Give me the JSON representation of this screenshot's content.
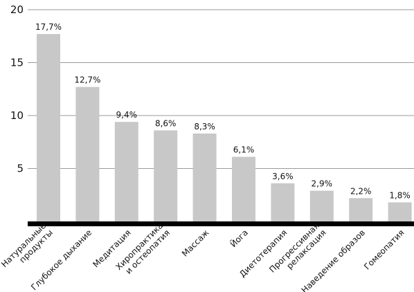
{
  "chart_data": {
    "type": "bar",
    "categories": [
      [
        "Натуральные",
        "продукты"
      ],
      [
        "Глубокое дыхание"
      ],
      [
        "Медитация"
      ],
      [
        "Хиропрактика",
        "и остеопатия"
      ],
      [
        "Массаж"
      ],
      [
        "Йога"
      ],
      [
        "Диетотерапия"
      ],
      [
        "Прогрессивная",
        "релаксация"
      ],
      [
        "Наведение образов"
      ],
      [
        "Гомеопатия"
      ]
    ],
    "values": [
      17.7,
      12.7,
      9.4,
      8.6,
      8.3,
      6.1,
      3.6,
      2.9,
      2.2,
      1.8
    ],
    "value_labels": [
      "17,7%",
      "12,7%",
      "9,4%",
      "8,6%",
      "8,3%",
      "6,1%",
      "3,6%",
      "2,9%",
      "2,2%",
      "1,8%"
    ],
    "title": "",
    "xlabel": "",
    "ylabel": "",
    "ylim": [
      0,
      20
    ],
    "yticks": [
      5,
      10,
      15,
      20
    ],
    "ytick_labels": [
      "5",
      "10",
      "15",
      "20"
    ],
    "grid": true,
    "bar_color": "#c8c8c8",
    "grid_color": "#9a9a9a",
    "baseline_color": "#000000"
  }
}
